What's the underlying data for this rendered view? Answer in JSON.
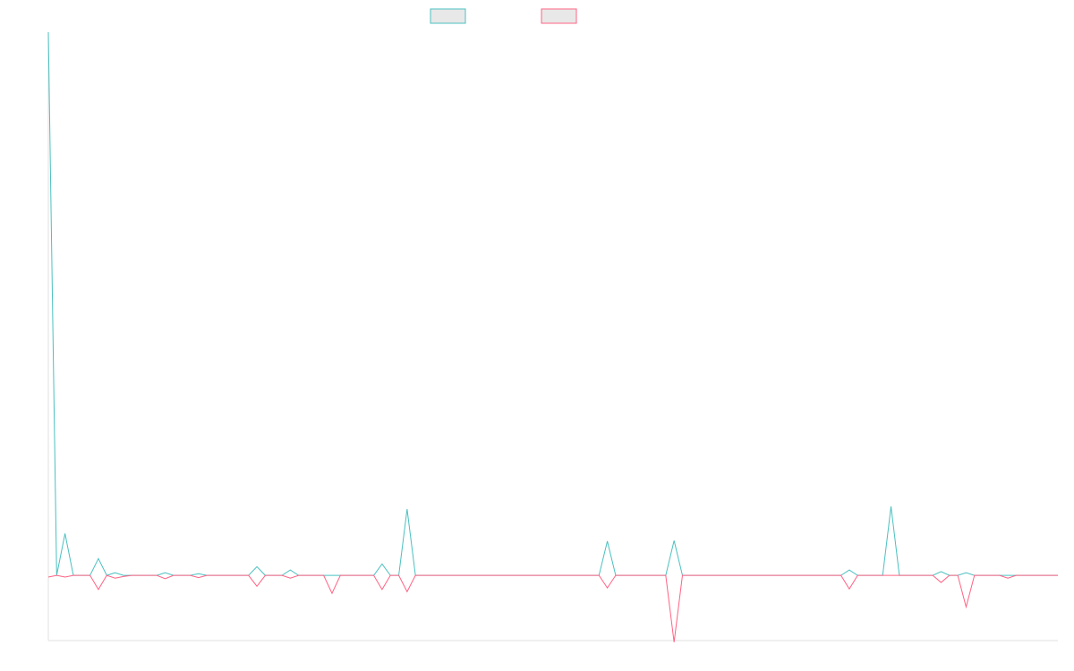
{
  "chart_data": {
    "type": "line",
    "ylim": [
      -12,
      100
    ],
    "series": [
      {
        "color": "#4bc0c0",
        "values": [
          100,
          0,
          7.7,
          0,
          0,
          0,
          3.1,
          0,
          0.5,
          0,
          0,
          0,
          0,
          0,
          0.5,
          0,
          0,
          0,
          0.3,
          0,
          0,
          0,
          0,
          0,
          0,
          1.6,
          0,
          0,
          0,
          1.0,
          0,
          0,
          0,
          0,
          0,
          0,
          0,
          0,
          0,
          0,
          2.1,
          0,
          0,
          12.2,
          0,
          0,
          0,
          0,
          0,
          0,
          0,
          0,
          0,
          0,
          0,
          0,
          0,
          0,
          0,
          0,
          0,
          0,
          0,
          0,
          0,
          0,
          0,
          6.3,
          0,
          0,
          0,
          0,
          0,
          0,
          0,
          6.4,
          0,
          0,
          0,
          0,
          0,
          0,
          0,
          0,
          0,
          0,
          0,
          0,
          0,
          0,
          0,
          0,
          0,
          0,
          0,
          0,
          1.0,
          0,
          0,
          0,
          0,
          12.7,
          0,
          0,
          0,
          0,
          0,
          0.7,
          0,
          0,
          0.5,
          0,
          0,
          0,
          0,
          0,
          0,
          0,
          0,
          0,
          0,
          0
        ]
      },
      {
        "color": "#ff6384",
        "values": [
          -0.3,
          0,
          -0.3,
          0,
          0,
          0,
          -2.6,
          0,
          -0.5,
          -0.2,
          0,
          0,
          0,
          0,
          -0.6,
          0,
          0,
          0,
          -0.4,
          0,
          0,
          0,
          0,
          0,
          0,
          -2.0,
          0,
          0,
          0,
          -0.5,
          0,
          0,
          0,
          0,
          -3.3,
          0,
          0,
          0,
          0,
          0,
          -2.6,
          0,
          0,
          -3.0,
          0,
          0,
          0,
          0,
          0,
          0,
          0,
          0,
          0,
          0,
          0,
          0,
          0,
          0,
          0,
          0,
          0,
          0,
          0,
          0,
          0,
          0,
          0,
          -2.3,
          0,
          0,
          0,
          0,
          0,
          0,
          0,
          -12.3,
          0,
          0,
          0,
          0,
          0,
          0,
          0,
          0,
          0,
          0,
          0,
          0,
          0,
          0,
          0,
          0,
          0,
          0,
          0,
          0,
          -2.5,
          0,
          0,
          0,
          0,
          0,
          0,
          0,
          0,
          0,
          0,
          -1.3,
          0,
          0,
          -5.8,
          0,
          0,
          0,
          0,
          -0.5,
          0,
          0,
          0,
          0,
          0,
          0
        ]
      }
    ]
  }
}
